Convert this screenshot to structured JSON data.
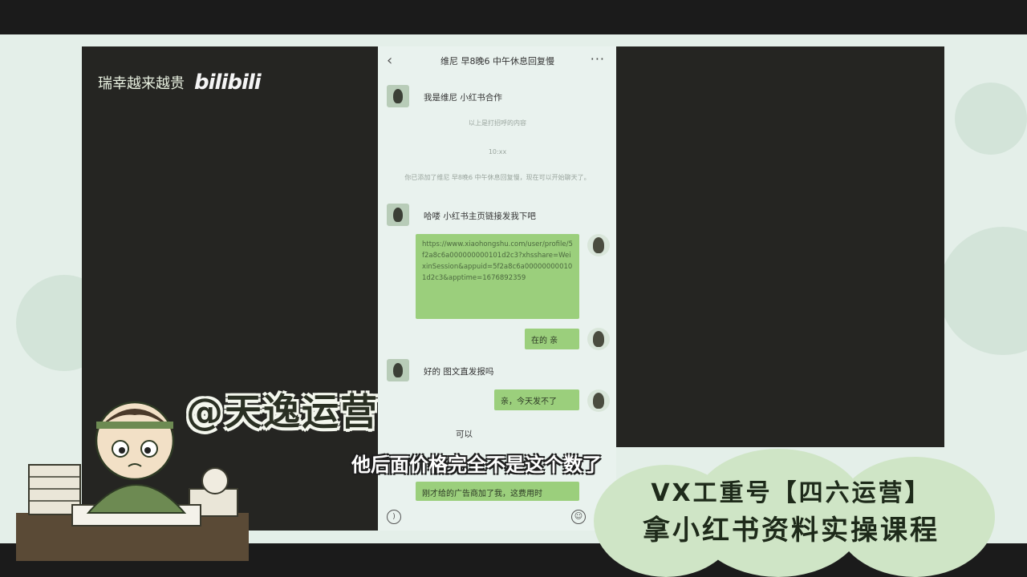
{
  "watermark": {
    "text": "瑞幸越来越贵",
    "logo": "bilibili"
  },
  "chat": {
    "header_title": "维尼 早8晚6 中午休息回复慢",
    "back_icon": "chevron-left-icon",
    "more_icon": "more-dots-icon",
    "messages": [
      {
        "from": "other",
        "text": "我是维尼 小红书合作"
      },
      {
        "from": "system",
        "text": "以上是打招呼的内容"
      },
      {
        "from": "system",
        "text": "10:xx"
      },
      {
        "from": "system",
        "text": "你已添加了维尼 早8晚6 中午休息回复慢，现在可以开始聊天了。"
      },
      {
        "from": "other",
        "text": "哈喽 小红书主页链接发我下吧"
      },
      {
        "from": "self",
        "type": "link",
        "text": "https://www.xiaohongshu.com/user/profile/5f2a8c6a000000000101d2c3?xhsshare=WeixinSession&appuid=5f2a8c6a000000000101d2c3&apptime=1676892359"
      },
      {
        "from": "self",
        "text": "在的 亲"
      },
      {
        "from": "other",
        "text": "好的 图文直发报吗"
      },
      {
        "from": "self",
        "text": "亲，今天发不了"
      },
      {
        "from": "other",
        "text": "可以"
      },
      {
        "from": "self",
        "text": "刚才给的广告商加了我，这费用时"
      }
    ]
  },
  "overlay": {
    "brand": "@天逸运营",
    "subtitle": "他后面价格完全不是这个数了",
    "promo_line1": "VX工重号【四六运营】",
    "promo_line2": "拿小红书资料实操课程"
  },
  "colors": {
    "bubble_green": "#9bcf7c",
    "stage_bg": "#e4efe9",
    "panel_dark": "#252522"
  }
}
